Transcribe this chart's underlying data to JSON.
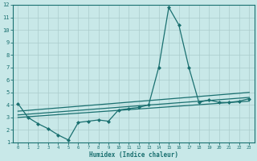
{
  "xlabel": "Humidex (Indice chaleur)",
  "xlim": [
    -0.5,
    23.5
  ],
  "ylim": [
    1,
    12
  ],
  "yticks": [
    1,
    2,
    3,
    4,
    5,
    6,
    7,
    8,
    9,
    10,
    11,
    12
  ],
  "xticks": [
    0,
    1,
    2,
    3,
    4,
    5,
    6,
    7,
    8,
    9,
    10,
    11,
    12,
    13,
    14,
    15,
    16,
    17,
    18,
    19,
    20,
    21,
    22,
    23
  ],
  "line_color": "#1a7070",
  "bg_color": "#c8e8e8",
  "grid_color": "#b0d8d8",
  "lines": [
    {
      "x": [
        0,
        1,
        2,
        3,
        4,
        5,
        6,
        7,
        8,
        9,
        10,
        11,
        12,
        13,
        14,
        15,
        16,
        17,
        18,
        19,
        20,
        21,
        22,
        23
      ],
      "y": [
        4.1,
        3.0,
        2.5,
        2.1,
        1.6,
        1.2,
        2.6,
        2.7,
        2.8,
        2.7,
        3.6,
        3.7,
        3.8,
        4.0,
        7.0,
        11.8,
        10.4,
        7.0,
        4.2,
        4.4,
        4.2,
        4.2,
        4.3,
        4.5
      ],
      "marker": "D",
      "markersize": 2.0,
      "lw": 0.9
    },
    {
      "x": [
        0,
        23
      ],
      "y": [
        3.5,
        5.0
      ],
      "marker": null,
      "markersize": 0,
      "lw": 0.9
    },
    {
      "x": [
        0,
        23
      ],
      "y": [
        3.2,
        4.6
      ],
      "marker": null,
      "markersize": 0,
      "lw": 0.9
    },
    {
      "x": [
        0,
        23
      ],
      "y": [
        3.0,
        4.3
      ],
      "marker": null,
      "markersize": 0,
      "lw": 0.9
    }
  ]
}
